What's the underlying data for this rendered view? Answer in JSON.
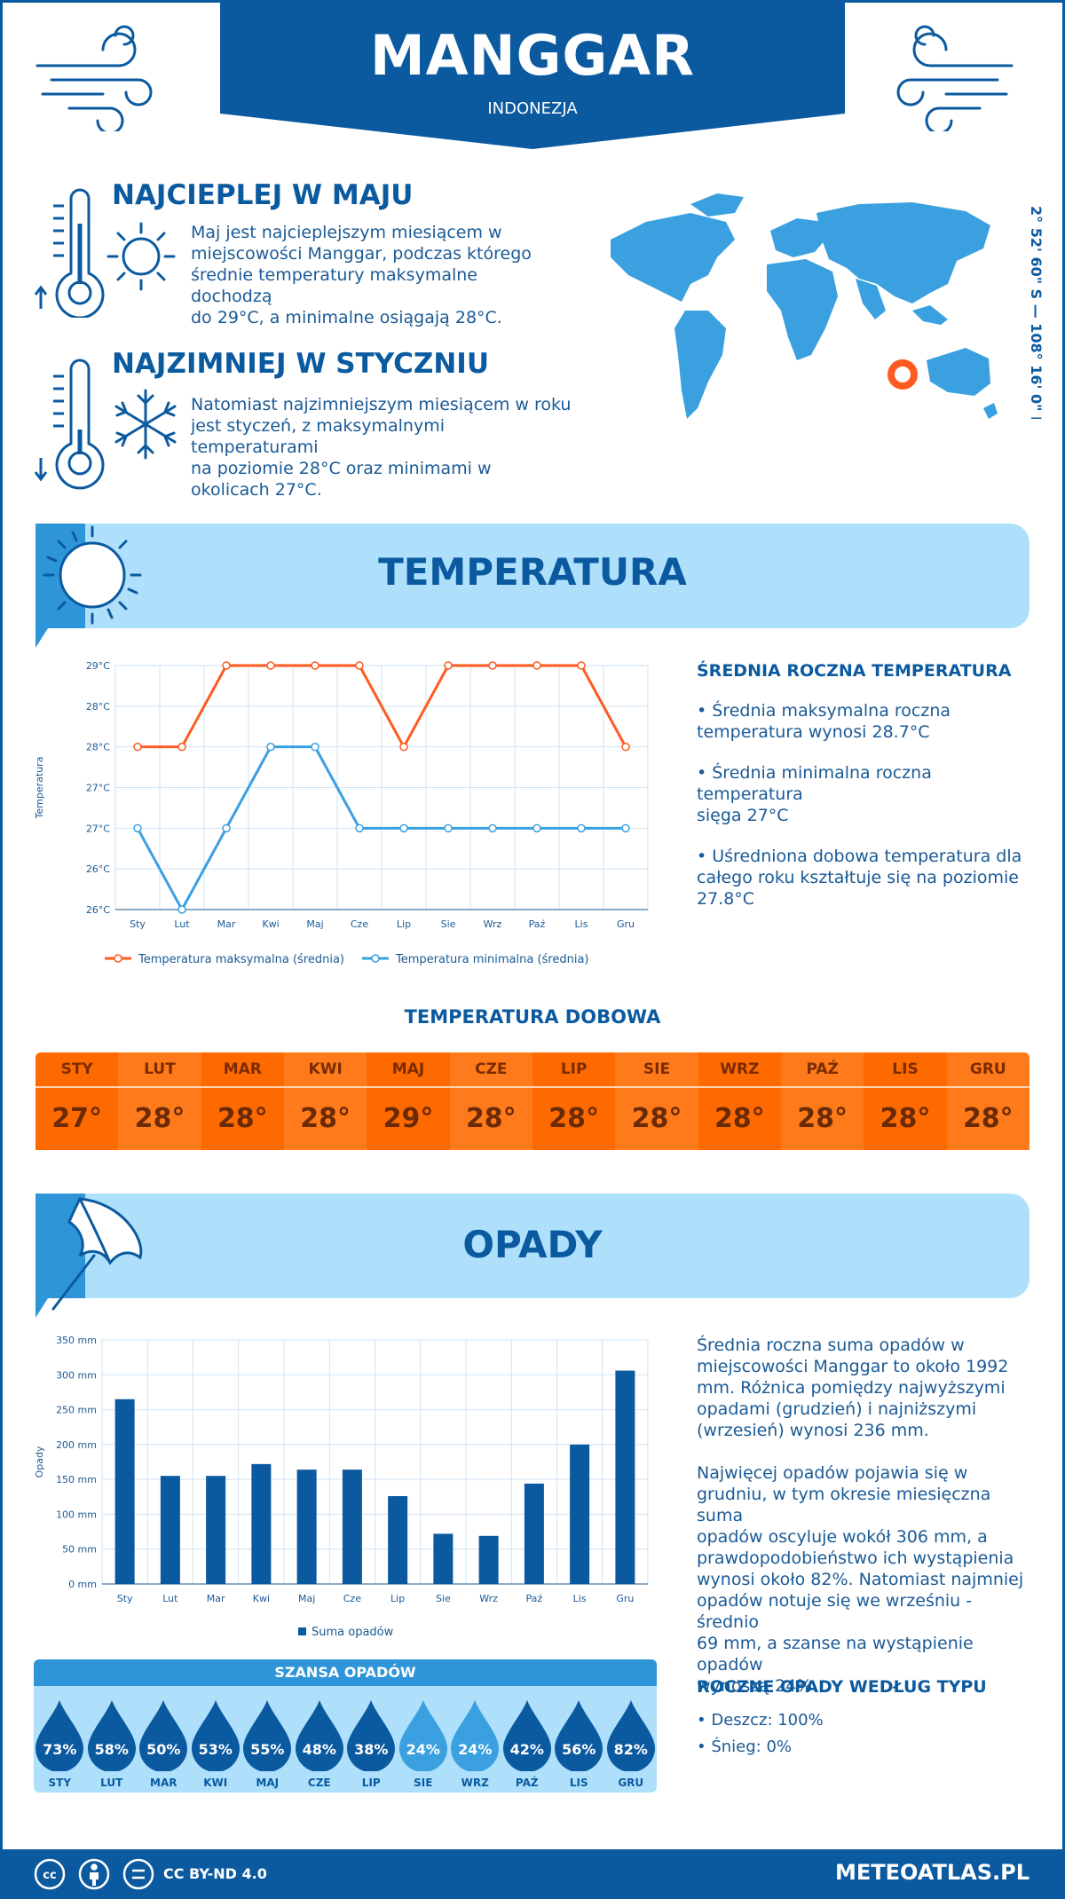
{
  "header": {
    "title": "MANGGAR",
    "country": "INDONEZJA"
  },
  "colors": {
    "primary": "#0b5aa0",
    "light_band": "#aee0fb",
    "max_line": "#ff5a1f",
    "min_line": "#3aa0e0",
    "orange": "#ff6a00"
  },
  "warmest": {
    "heading": "NAJCIEPLEJ W MAJU",
    "lines": [
      "Maj jest najcieplejszym miesiącem w",
      "miejscowości Manggar, podczas którego",
      "średnie temperatury maksymalne dochodzą",
      "do 29°C, a minimalne osiągają 28°C."
    ]
  },
  "coldest": {
    "heading": "NAJZIMNIEJ W STYCZNIU",
    "lines": [
      "Natomiast najzimniejszym miesiącem w roku",
      "jest styczeń, z maksymalnymi temperaturami",
      "na poziomie 28°C oraz minimami w",
      "okolicach 27°C."
    ]
  },
  "coordinates": "2° 52' 60\" S — 108° 16' 0\" E",
  "temperature_section": {
    "title": "TEMPERATURA"
  },
  "temp_stats": {
    "heading": "ŚREDNIA ROCZNA TEMPERATURA",
    "p1": [
      "• Średnia maksymalna roczna",
      "temperatura wynosi 28.7°C"
    ],
    "p2": [
      "• Średnia minimalna roczna temperatura",
      "sięga 27°C"
    ],
    "p3": [
      "• Uśredniona dobowa temperatura dla",
      "całego roku kształtuje się na poziomie",
      "27.8°C"
    ]
  },
  "daily_temp": {
    "heading": "TEMPERATURA DOBOWA",
    "months": [
      "STY",
      "LUT",
      "MAR",
      "KWI",
      "MAJ",
      "CZE",
      "LIP",
      "SIE",
      "WRZ",
      "PAŹ",
      "LIS",
      "GRU"
    ],
    "values": [
      "27°",
      "28°",
      "28°",
      "28°",
      "29°",
      "28°",
      "28°",
      "28°",
      "28°",
      "28°",
      "28°",
      "28°"
    ]
  },
  "precip_section": {
    "title": "OPADY"
  },
  "precip_text": {
    "p1": [
      "Średnia roczna suma opadów w",
      "miejscowości Manggar to około 1992",
      "mm. Różnica pomiędzy najwyższymi",
      "opadami (grudzień) i najniższymi",
      "(wrzesień) wynosi 236 mm."
    ],
    "p2": [
      "Najwięcej opadów pojawia się w",
      "grudniu, w tym okresie miesięczna suma",
      "opadów oscyluje wokół 306 mm, a",
      "prawdopodobieństwo ich wystąpienia",
      "wynosi około 82%. Natomiast najmniej",
      "opadów notuje się we wrześniu - średnio",
      "69 mm, a szanse na wystąpienie opadów",
      "wynoszą 24%."
    ]
  },
  "chance": {
    "heading": "SZANSA OPADÓW",
    "months": [
      "STY",
      "LUT",
      "MAR",
      "KWI",
      "MAJ",
      "CZE",
      "LIP",
      "SIE",
      "WRZ",
      "PAŹ",
      "LIS",
      "GRU"
    ],
    "values": [
      "73%",
      "58%",
      "50%",
      "53%",
      "55%",
      "48%",
      "38%",
      "24%",
      "24%",
      "42%",
      "56%",
      "82%"
    ]
  },
  "precip_type": {
    "heading": "ROCZNE OPADY WEDŁUG TYPU",
    "rain": "• Deszcz: 100%",
    "snow": "• Śnieg: 0%"
  },
  "footer": {
    "license": "CC BY-ND 4.0",
    "site": "METEOATLAS.PL"
  },
  "chart_data": [
    {
      "type": "line",
      "ylabel": "Temperatura",
      "categories": [
        "Sty",
        "Lut",
        "Mar",
        "Kwi",
        "Maj",
        "Cze",
        "Lip",
        "Sie",
        "Wrz",
        "Paź",
        "Lis",
        "Gru"
      ],
      "yticks": [
        "29°C",
        "28°C",
        "28°C",
        "27°C",
        "27°C",
        "26°C",
        "26°C"
      ],
      "ylim": [
        26,
        29
      ],
      "series": [
        {
          "name": "Temperatura maksymalna (średnia)",
          "values": [
            28,
            28,
            29,
            29,
            29,
            29,
            28,
            29,
            29,
            29,
            29,
            28
          ]
        },
        {
          "name": "Temperatura minimalna (średnia)",
          "values": [
            27,
            26,
            27,
            28,
            28,
            27,
            27,
            27,
            27,
            27,
            27,
            27
          ]
        }
      ],
      "grid": true,
      "legend": "bottom"
    },
    {
      "type": "bar",
      "ylabel": "Opady",
      "categories": [
        "Sty",
        "Lut",
        "Mar",
        "Kwi",
        "Maj",
        "Cze",
        "Lip",
        "Sie",
        "Wrz",
        "Paź",
        "Lis",
        "Gru"
      ],
      "yticks": [
        "0 mm",
        "50 mm",
        "100 mm",
        "150 mm",
        "200 mm",
        "250 mm",
        "300 mm",
        "350 mm"
      ],
      "ylim": [
        0,
        350
      ],
      "series": [
        {
          "name": "Suma opadów",
          "values": [
            265,
            155,
            155,
            172,
            164,
            164,
            126,
            72,
            69,
            144,
            200,
            306
          ]
        }
      ],
      "grid": true,
      "legend": "bottom"
    }
  ]
}
